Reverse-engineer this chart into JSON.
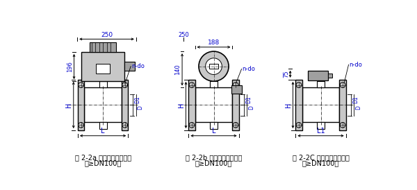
{
  "background_color": "#ffffff",
  "fig1": {
    "caption1": "图 2-2a 一体型电磁流量计",
    "caption2": "（≥DN100）",
    "dim_250": "250",
    "dim_196": "196",
    "dim_H": "H",
    "dim_L": "L",
    "dim_D1": "D1",
    "dim_D": "D",
    "dim_ndo": "n-do"
  },
  "fig2": {
    "caption1": "图 2-2b 一体型电磁流量计",
    "caption2": "（≥DN100）",
    "dim_188": "188",
    "dim_140": "140",
    "dim_H": "H",
    "dim_L": "L",
    "dim_D1": "D1",
    "dim_D": "D",
    "dim_ndo": "n-do"
  },
  "fig3": {
    "caption1": "图 2-2C 分离型电磁流量计",
    "caption2": "（≥DN100）",
    "dim_75": "75",
    "dim_H": "H",
    "dim_L1": "L1",
    "dim_D1": "D1",
    "dim_D": "D",
    "dim_ndo": "n-do"
  },
  "colors": {
    "black": "#000000",
    "gray_light": "#c8c8c8",
    "gray_mid": "#a0a0a0",
    "gray_dark": "#808080",
    "dim_blue": "#0000cc",
    "white": "#ffffff"
  }
}
